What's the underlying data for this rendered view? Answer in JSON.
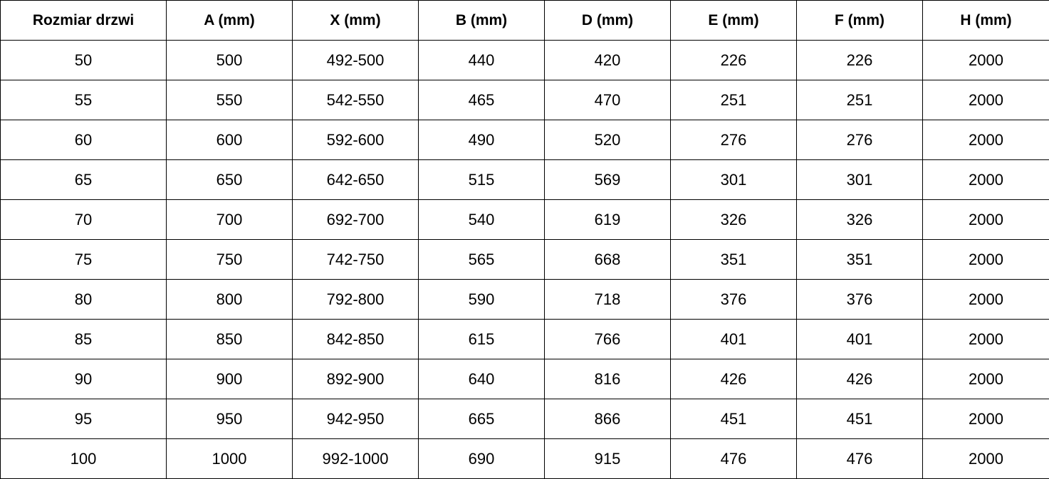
{
  "table": {
    "headers": [
      "Rozmiar drzwi",
      "A (mm)",
      "X (mm)",
      "B (mm)",
      "D (mm)",
      "E (mm)",
      "F (mm)",
      "H (mm)"
    ],
    "rows": [
      [
        "50",
        "500",
        "492-500",
        "440",
        "420",
        "226",
        "226",
        "2000"
      ],
      [
        "55",
        "550",
        "542-550",
        "465",
        "470",
        "251",
        "251",
        "2000"
      ],
      [
        "60",
        "600",
        "592-600",
        "490",
        "520",
        "276",
        "276",
        "2000"
      ],
      [
        "65",
        "650",
        "642-650",
        "515",
        "569",
        "301",
        "301",
        "2000"
      ],
      [
        "70",
        "700",
        "692-700",
        "540",
        "619",
        "326",
        "326",
        "2000"
      ],
      [
        "75",
        "750",
        "742-750",
        "565",
        "668",
        "351",
        "351",
        "2000"
      ],
      [
        "80",
        "800",
        "792-800",
        "590",
        "718",
        "376",
        "376",
        "2000"
      ],
      [
        "85",
        "850",
        "842-850",
        "615",
        "766",
        "401",
        "401",
        "2000"
      ],
      [
        "90",
        "900",
        "892-900",
        "640",
        "816",
        "426",
        "426",
        "2000"
      ],
      [
        "95",
        "950",
        "942-950",
        "665",
        "866",
        "451",
        "451",
        "2000"
      ],
      [
        "100",
        "1000",
        "992-1000",
        "690",
        "915",
        "476",
        "476",
        "2000"
      ]
    ]
  }
}
